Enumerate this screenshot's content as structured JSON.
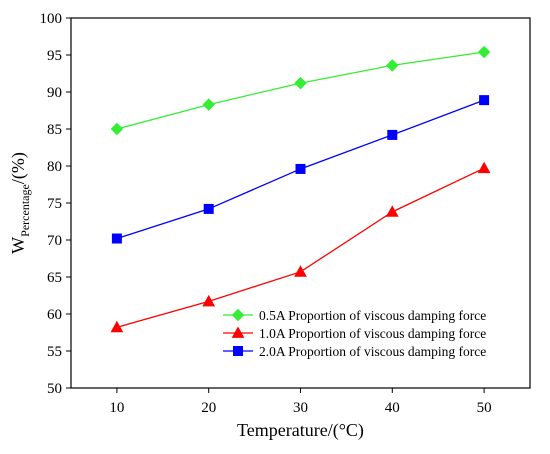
{
  "chart_data": {
    "type": "line",
    "xlabel": "Temperature/(°C)",
    "ylabel_main": "W",
    "ylabel_sub": "Percentage",
    "ylabel_tail": "/(%)",
    "x": [
      10,
      20,
      30,
      40,
      50
    ],
    "xlim": [
      5,
      55
    ],
    "ylim": [
      50,
      100
    ],
    "xticks": [
      10,
      20,
      30,
      40,
      50
    ],
    "yticks": [
      50,
      55,
      60,
      65,
      70,
      75,
      80,
      85,
      90,
      95,
      100
    ],
    "grid": false,
    "legend_position": "lower-right",
    "series": [
      {
        "name": "0.5A Proportion of viscous damping force",
        "marker": "diamond",
        "color": "#33ee33",
        "values": [
          85.0,
          88.3,
          91.2,
          93.6,
          95.4
        ]
      },
      {
        "name": "1.0A Proportion of viscous damping force",
        "marker": "triangle",
        "color": "#ff0000",
        "values": [
          58.2,
          61.7,
          65.7,
          73.8,
          79.7
        ]
      },
      {
        "name": "2.0A Proportion of viscous damping force",
        "marker": "square",
        "color": "#0000ff",
        "values": [
          70.2,
          74.2,
          79.6,
          84.2,
          88.9
        ]
      }
    ]
  }
}
